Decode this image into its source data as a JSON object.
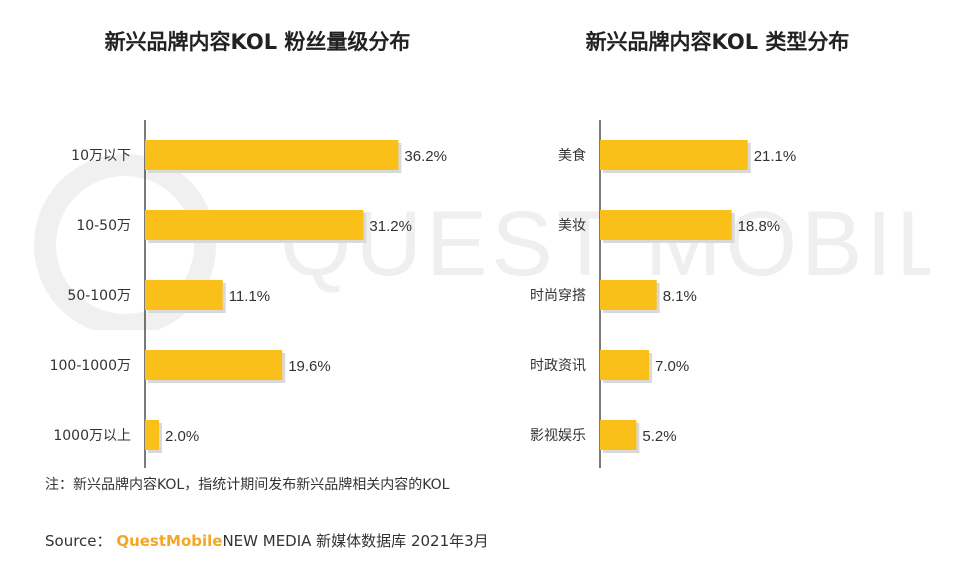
{
  "watermark": "QUEST MOBILE",
  "colors": {
    "bar": "#fbbf1a",
    "bar_shadow": "#d9d9d9",
    "axis": "#222222",
    "watermark": "#eeeeee"
  },
  "chart_data": [
    {
      "type": "bar",
      "orientation": "horizontal",
      "title": "新兴品牌内容KOL 粉丝量级分布",
      "categories": [
        "10万以下",
        "10-50万",
        "50-100万",
        "100-1000万",
        "1000万以上"
      ],
      "values": [
        36.2,
        31.2,
        11.1,
        19.6,
        2.0
      ],
      "value_labels": [
        "36.2%",
        "31.2%",
        "11.1%",
        "19.6%",
        "2.0%"
      ],
      "xlim": [
        0,
        100
      ]
    },
    {
      "type": "bar",
      "orientation": "horizontal",
      "title": "新兴品牌内容KOL 类型分布",
      "categories": [
        "美食",
        "美妆",
        "时尚穿搭",
        "时政资讯",
        "影视娱乐"
      ],
      "values": [
        21.1,
        18.8,
        8.1,
        7.0,
        5.2
      ],
      "value_labels": [
        "21.1%",
        "18.8%",
        "8.1%",
        "7.0%",
        "5.2%"
      ],
      "xlim": [
        0,
        100
      ]
    }
  ],
  "footnote": "注：新兴品牌内容KOL，指统计期间发布新兴品牌相关内容的KOL",
  "source": {
    "label": "Source：",
    "brand": "QuestMobile",
    "text": "NEW MEDIA 新媒体数据库 2021年3月"
  }
}
